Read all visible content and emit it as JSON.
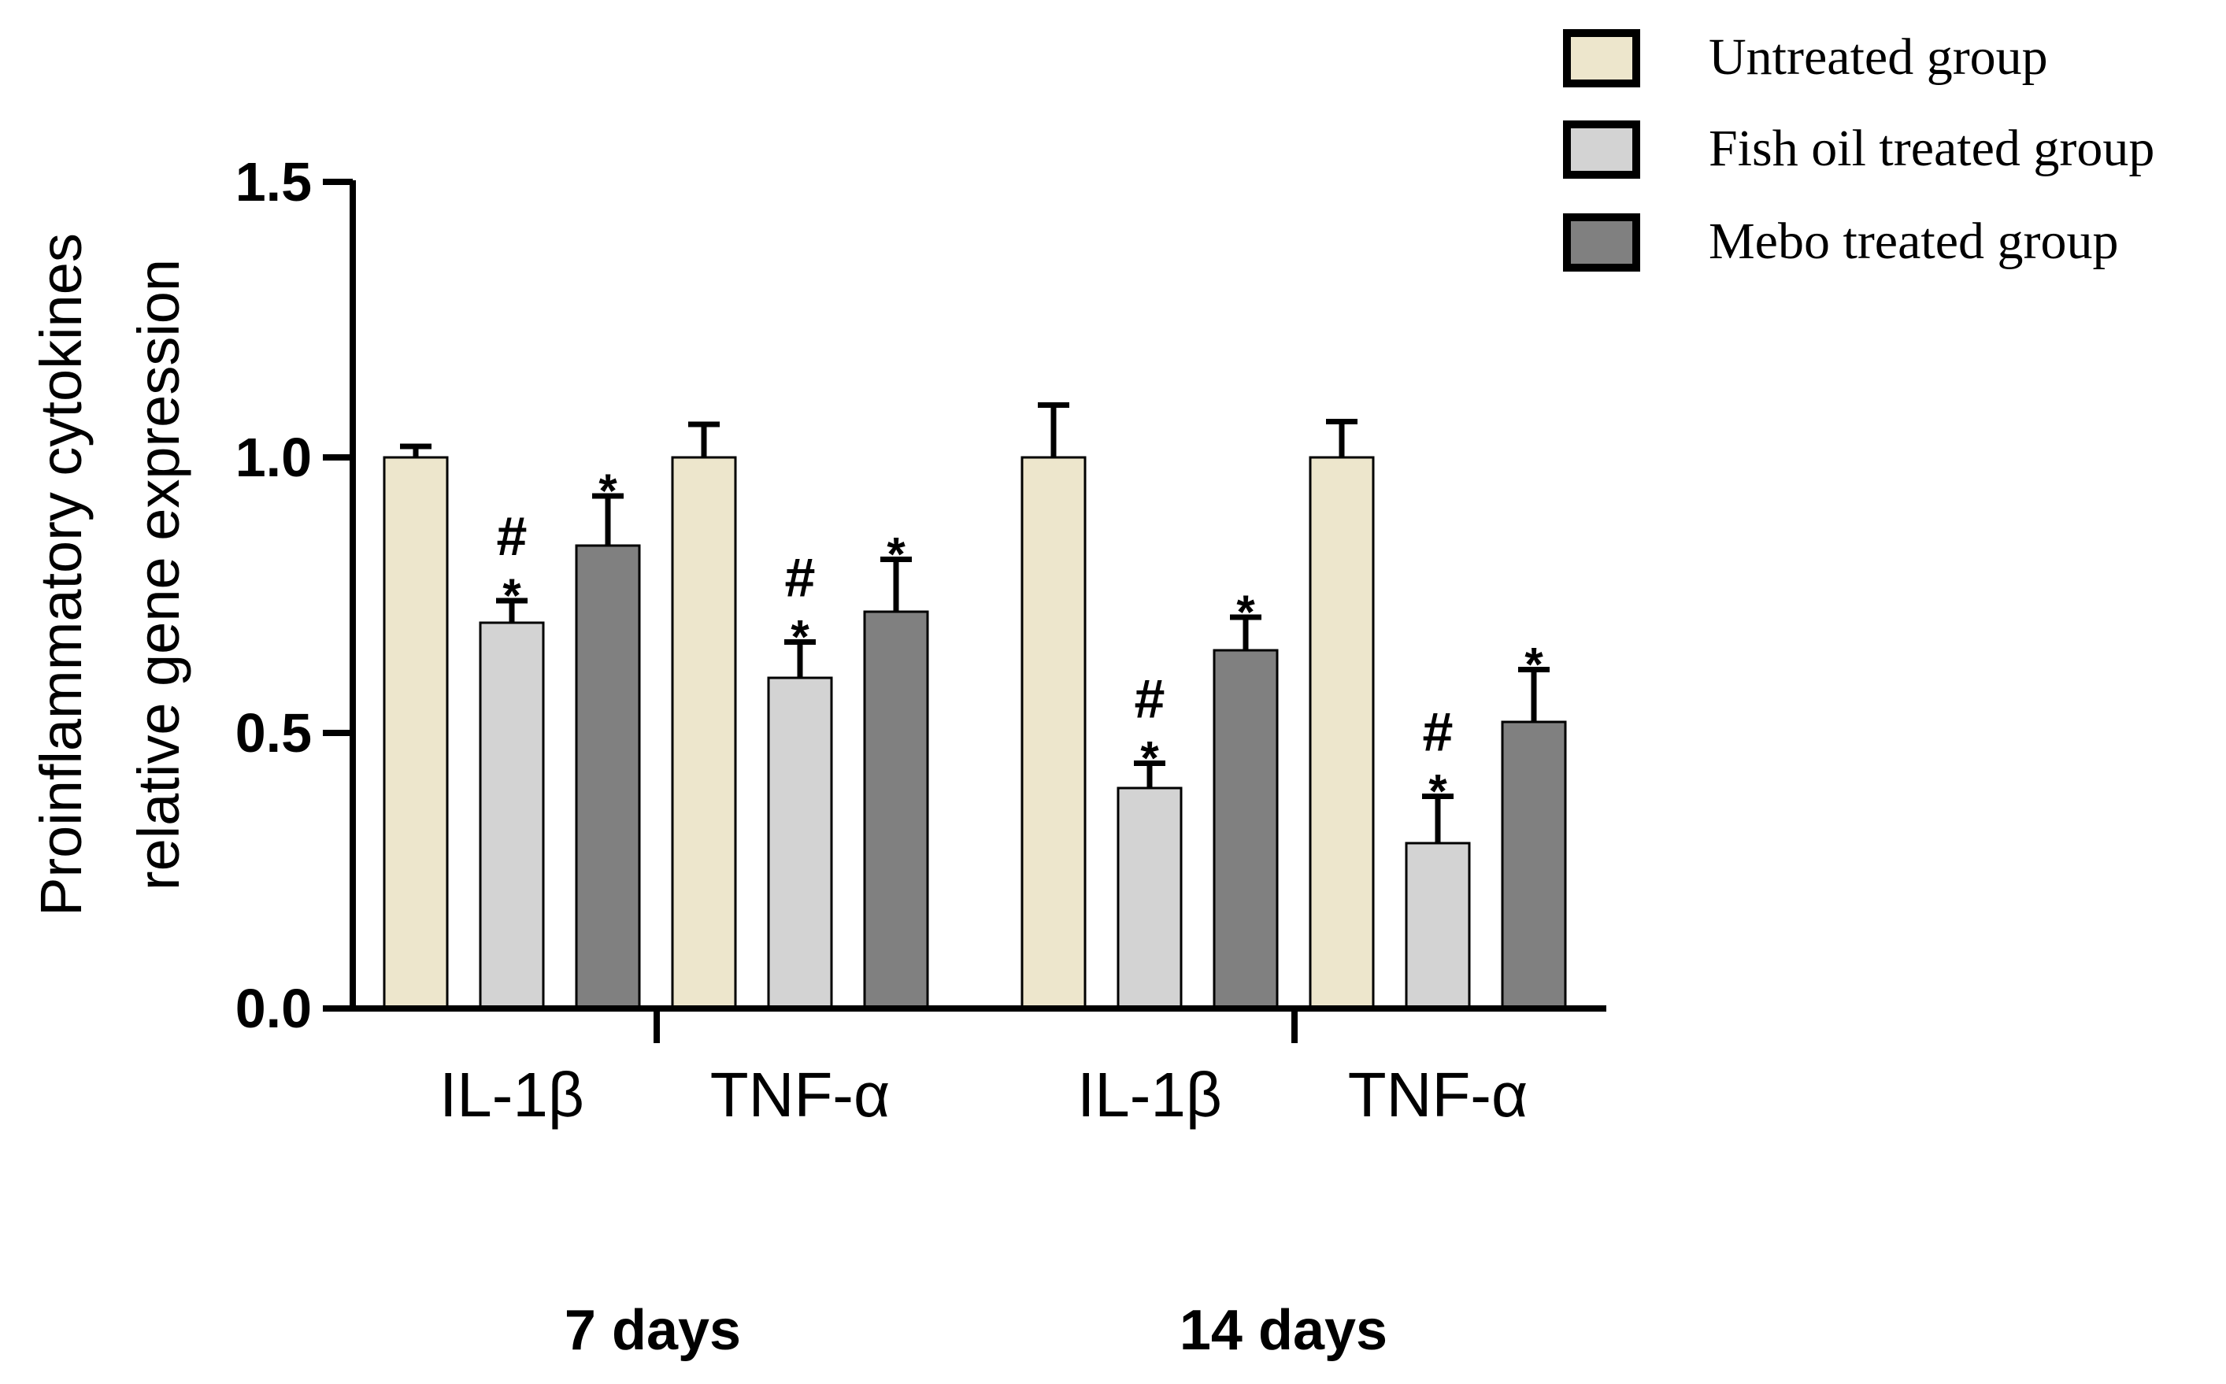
{
  "chart_data": {
    "type": "bar",
    "ylabel_line1": "Proinflammatory cytokines",
    "ylabel_line2": "relative gene expression",
    "ylim": [
      0,
      1.5
    ],
    "yticks": [
      "0.0",
      "0.5",
      "1.0",
      "1.5"
    ],
    "periods": [
      {
        "label": "7 days",
        "groups": [
          {
            "label": "IL-1β",
            "bars": [
              {
                "series": "Untreated group",
                "value": 1.0,
                "error": 0.02,
                "annotation": ""
              },
              {
                "series": "Fish oil treated group",
                "value": 0.7,
                "error": 0.04,
                "annotation": "#\n*"
              },
              {
                "series": "Mebo treated group",
                "value": 0.84,
                "error": 0.09,
                "annotation": "*"
              }
            ]
          },
          {
            "label": "TNF-α",
            "bars": [
              {
                "series": "Untreated group",
                "value": 1.0,
                "error": 0.06,
                "annotation": ""
              },
              {
                "series": "Fish oil treated group",
                "value": 0.6,
                "error": 0.065,
                "annotation": "#\n*"
              },
              {
                "series": "Mebo treated group",
                "value": 0.72,
                "error": 0.095,
                "annotation": "*"
              }
            ]
          }
        ]
      },
      {
        "label": "14 days",
        "groups": [
          {
            "label": "IL-1β",
            "bars": [
              {
                "series": "Untreated group",
                "value": 1.0,
                "error": 0.095,
                "annotation": ""
              },
              {
                "series": "Fish oil treated group",
                "value": 0.4,
                "error": 0.045,
                "annotation": "#\n*"
              },
              {
                "series": "Mebo treated group",
                "value": 0.65,
                "error": 0.06,
                "annotation": "*"
              }
            ]
          },
          {
            "label": "TNF-α",
            "bars": [
              {
                "series": "Untreated group",
                "value": 1.0,
                "error": 0.065,
                "annotation": ""
              },
              {
                "series": "Fish oil treated group",
                "value": 0.3,
                "error": 0.085,
                "annotation": "#\n*"
              },
              {
                "series": "Mebo treated group",
                "value": 0.52,
                "error": 0.095,
                "annotation": "*"
              }
            ]
          }
        ]
      }
    ],
    "legend": [
      {
        "label": "Untreated group",
        "color": "#EDE6CC"
      },
      {
        "label": "Fish oil treated group",
        "color": "#D3D3D3"
      },
      {
        "label": "Mebo treated group",
        "color": "#808080"
      }
    ],
    "legend_position": "top-right"
  }
}
